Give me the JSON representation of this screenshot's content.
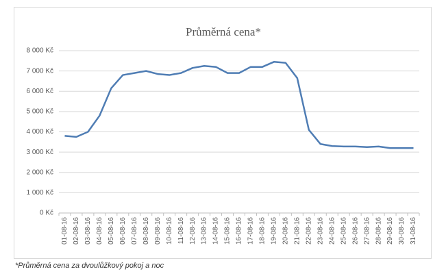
{
  "chart_data": {
    "type": "line",
    "title": "Průměrná cena*",
    "footnote": "*Průměrná cena za dvoulůžkový pokoj a noc",
    "categories": [
      "01-08-16",
      "02-08-16",
      "03-08-16",
      "04-08-16",
      "05-08-16",
      "06-08-16",
      "07-08-16",
      "08-08-16",
      "09-08-16",
      "10-08-16",
      "11-08-16",
      "12-08-16",
      "13-08-16",
      "14-08-16",
      "15-08-16",
      "16-08-16",
      "17-08-16",
      "18-08-16",
      "19-08-16",
      "20-08-16",
      "21-08-16",
      "22-08-16",
      "23-08-16",
      "24-08-16",
      "25-08-16",
      "26-08-16",
      "27-08-16",
      "28-08-16",
      "29-08-16",
      "30-08-16",
      "31-08-16"
    ],
    "series": [
      {
        "color": "#4f7db4",
        "values": [
          3800,
          3750,
          4000,
          4800,
          6150,
          6800,
          6900,
          7000,
          6850,
          6800,
          6900,
          7150,
          7250,
          7200,
          6900,
          6900,
          7200,
          7200,
          7450,
          7400,
          6650,
          4100,
          3400,
          3300,
          3280,
          3280,
          3250,
          3280,
          3200,
          3200,
          3200
        ]
      }
    ],
    "ylim": [
      0,
      8000
    ],
    "yticks": [
      {
        "value": 0,
        "label": "0 Kč"
      },
      {
        "value": 1000,
        "label": "1 000 Kč"
      },
      {
        "value": 2000,
        "label": "2 000 Kč"
      },
      {
        "value": 3000,
        "label": "3 000 Kč"
      },
      {
        "value": 4000,
        "label": "4 000 Kč"
      },
      {
        "value": 5000,
        "label": "5 000 Kč"
      },
      {
        "value": 6000,
        "label": "6 000 Kč"
      },
      {
        "value": 7000,
        "label": "7 000 Kč"
      },
      {
        "value": 8000,
        "label": "8 000 Kč"
      }
    ],
    "grid": true
  }
}
